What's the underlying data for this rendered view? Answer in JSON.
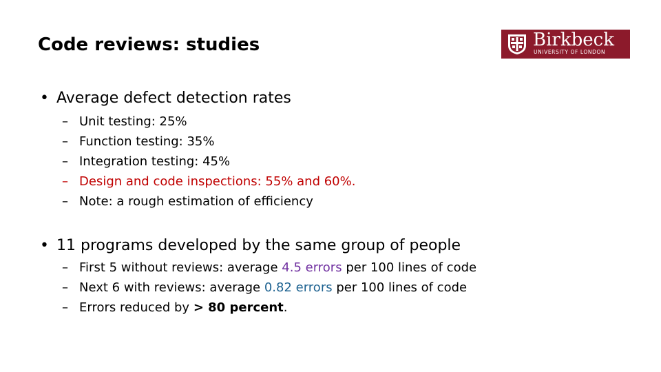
{
  "slide": {
    "title": "Code reviews: studies"
  },
  "logo": {
    "name": "Birkbeck",
    "subtitle": "UNIVERSITY OF LONDON",
    "color": "#8c1a2b"
  },
  "bullets": [
    {
      "text": "Average defect detection rates",
      "items": [
        "Unit testing: 25%",
        "Function testing: 35%",
        "Integration testing: 45%",
        "Design and code inspections: 55% and 60%.",
        "Note: a rough estimation of efficiency"
      ]
    },
    {
      "text": "11 programs developed by the same group of people",
      "items": [
        {
          "a": "First 5 without reviews: average ",
          "hl": "4.5 errors",
          "b": " per 100 lines of code"
        },
        {
          "a": "Next 6 with reviews: average ",
          "hl": "0.82 errors",
          "b": " per 100 lines of code"
        },
        {
          "a": "Errors reduced by ",
          "hl": "> 80 percent",
          "b": "."
        }
      ]
    }
  ],
  "colors": {
    "highlight_red": "#c00000",
    "highlight_purple": "#7030a0",
    "highlight_blue": "#1f6391"
  }
}
